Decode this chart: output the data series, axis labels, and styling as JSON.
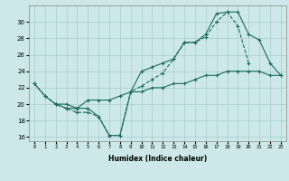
{
  "xlabel": "Humidex (Indice chaleur)",
  "background_color": "#cce8e8",
  "grid_color": "#aacccc",
  "line_color": "#1a6b5a",
  "xlim": [
    -0.5,
    23.5
  ],
  "ylim": [
    15.5,
    32.0
  ],
  "xtick_labels": [
    "0",
    "1",
    "2",
    "3",
    "4",
    "5",
    "6",
    "7",
    "8",
    "9",
    "10",
    "11",
    "12",
    "13",
    "14",
    "15",
    "16",
    "17",
    "18",
    "19",
    "20",
    "21",
    "22",
    "23"
  ],
  "ytick_values": [
    16,
    18,
    20,
    22,
    24,
    26,
    28,
    30
  ],
  "line_dashed_x": [
    0,
    1,
    2,
    3,
    4,
    5,
    6,
    7,
    8,
    9,
    10,
    11,
    12,
    13,
    14,
    15,
    16,
    17,
    18,
    19,
    20,
    21,
    22,
    23
  ],
  "line_dashed_y": [
    22.5,
    21.0,
    20.0,
    19.5,
    19.0,
    19.0,
    18.5,
    16.2,
    16.2,
    21.5,
    22.2,
    23.0,
    23.8,
    25.5,
    27.5,
    27.5,
    28.2,
    30.0,
    31.2,
    29.5,
    25.0,
    null,
    null,
    null
  ],
  "line_top_x": [
    0,
    1,
    2,
    3,
    4,
    5,
    6,
    7,
    8,
    9,
    10,
    11,
    12,
    13,
    14,
    15,
    16,
    17,
    18,
    19,
    20,
    21,
    22,
    23
  ],
  "line_top_y": [
    22.5,
    21.0,
    20.0,
    20.0,
    19.5,
    null,
    null,
    null,
    null,
    null,
    null,
    null,
    null,
    null,
    null,
    null,
    null,
    null,
    null,
    null,
    null,
    null,
    null,
    null
  ],
  "line_solid_x": [
    0,
    1,
    2,
    3,
    4,
    5,
    6,
    7,
    8,
    9,
    10,
    11,
    12,
    13,
    14,
    15,
    16,
    17,
    18,
    19,
    20,
    21,
    22,
    23
  ],
  "line_solid_y": [
    22.5,
    21.0,
    20.0,
    20.0,
    19.5,
    20.5,
    20.5,
    20.5,
    21.0,
    21.5,
    21.5,
    22.0,
    22.0,
    22.5,
    22.5,
    23.0,
    23.5,
    23.5,
    24.0,
    24.0,
    24.0,
    24.0,
    23.5,
    23.5
  ],
  "line_mid_x": [
    2,
    3,
    4,
    5,
    6,
    7,
    8,
    9,
    10,
    11,
    12,
    13,
    14,
    15,
    16,
    17,
    18,
    19,
    20,
    21,
    22,
    23
  ],
  "line_mid_y": [
    20.0,
    19.5,
    19.5,
    19.5,
    18.5,
    16.2,
    16.2,
    21.5,
    24.0,
    24.5,
    25.0,
    25.5,
    27.5,
    27.5,
    28.5,
    31.0,
    31.2,
    31.2,
    28.5,
    27.8,
    25.0,
    23.5
  ]
}
